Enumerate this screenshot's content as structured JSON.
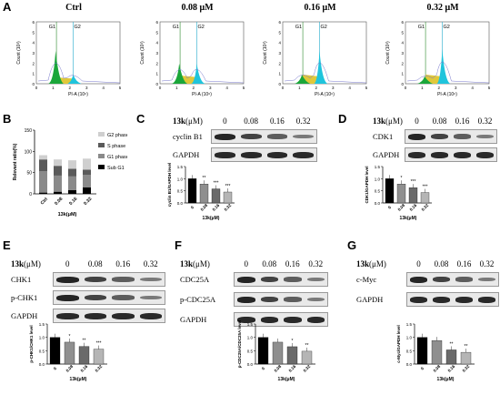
{
  "panels": {
    "A": "A",
    "B": "B",
    "C": "C",
    "D": "D",
    "E": "E",
    "F": "F",
    "G": "G"
  },
  "flow": {
    "titles": [
      "Ctrl",
      "0.08 μM",
      "0.16 μM",
      "0.32 μM"
    ],
    "gate1": "G1",
    "gate2": "G2",
    "ylabel": "Count (10³)",
    "xlabel": "PI-A (10⁶)",
    "yticks": [
      "0",
      "1",
      "2",
      "3",
      "4",
      "5",
      "6"
    ],
    "xticks": [
      "0",
      "1",
      "2",
      "3",
      "4",
      "5"
    ]
  },
  "blot_header": {
    "agent": "13k",
    "unit": "(μM)",
    "doses": [
      "0",
      "0.08",
      "0.16",
      "0.32"
    ]
  },
  "blots": {
    "C": {
      "proteins": [
        "cyclin B1",
        "GAPDH"
      ]
    },
    "D": {
      "proteins": [
        "CDK1",
        "GAPDH"
      ]
    },
    "E": {
      "proteins": [
        "CHK1",
        "p-CHK1",
        "GAPDH"
      ]
    },
    "F": {
      "proteins": [
        "CDC25A",
        "p-CDC25A",
        "GAPDH"
      ]
    },
    "G": {
      "proteins": [
        "c-Myc",
        "GAPDH"
      ]
    }
  },
  "colors": {
    "g1": "#1aa63a",
    "s": "#e0c83a",
    "g2": "#1fc4dc",
    "outline": "#7777cc",
    "bar_dark": "#000000",
    "bar_mid": "#8a8a8a",
    "bar_light": "#bdbdbd"
  },
  "chart_data": [
    {
      "type": "bar",
      "panel": "B",
      "stacked": true,
      "categories": [
        "Ctrl",
        "0.08",
        "0.16",
        "0.32"
      ],
      "series": [
        {
          "name": "Sub G1",
          "values": [
            3,
            5,
            9,
            15
          ]
        },
        {
          "name": "G1 phase",
          "values": [
            50,
            38,
            32,
            30
          ]
        },
        {
          "name": "S phase",
          "values": [
            28,
            23,
            18,
            12
          ]
        },
        {
          "name": "G2 phase",
          "values": [
            10,
            15,
            20,
            26
          ]
        }
      ],
      "xlabel": "13k(μM)",
      "ylabel": "Relevant ratio(%)",
      "ylim": [
        0,
        150
      ],
      "yticks": [
        "0",
        "50",
        "100",
        "150"
      ],
      "legend": "right"
    },
    {
      "type": "bar",
      "panel": "C",
      "categories": [
        "0",
        "0.08",
        "0.16",
        "0.32"
      ],
      "values": [
        1.0,
        0.78,
        0.58,
        0.45
      ],
      "stars": [
        "",
        "**",
        "***",
        "***"
      ],
      "ylabel": "cyclin B1/GAPDH level",
      "xlabel": "13k(μM)",
      "ylim": [
        0,
        1.5
      ],
      "yticks": [
        "0.0",
        "0.5",
        "1.0",
        "1.5"
      ]
    },
    {
      "type": "bar",
      "panel": "D",
      "categories": [
        "0",
        "0.08",
        "0.16",
        "0.32"
      ],
      "values": [
        1.0,
        0.78,
        0.63,
        0.43
      ],
      "stars": [
        "",
        "*",
        "***",
        "***"
      ],
      "ylabel": "CDK1/GAPDH level",
      "xlabel": "13k(μM)",
      "ylim": [
        0,
        1.5
      ],
      "yticks": [
        "0.0",
        "0.5",
        "1.0",
        "1.5"
      ]
    },
    {
      "type": "bar",
      "panel": "E",
      "categories": [
        "0",
        "0.08",
        "0.16",
        "0.32"
      ],
      "values": [
        1.0,
        0.82,
        0.66,
        0.56
      ],
      "stars": [
        "",
        "*",
        "**",
        "***"
      ],
      "ylabel": "p-CHK1/CHK1 level",
      "xlabel": "13k(μM)",
      "ylim": [
        0,
        1.5
      ],
      "yticks": [
        "0.0",
        "0.5",
        "1.0",
        "1.5"
      ]
    },
    {
      "type": "bar",
      "panel": "F",
      "categories": [
        "0",
        "0.08",
        "0.16",
        "0.32"
      ],
      "values": [
        1.0,
        0.82,
        0.65,
        0.48
      ],
      "stars": [
        "",
        "",
        "*",
        "**"
      ],
      "ylabel": "p-CDC25A/CDC25A level",
      "xlabel": "13k(μM)",
      "ylim": [
        0,
        1.5
      ],
      "yticks": [
        "0.0",
        "0.5",
        "1.0",
        "1.5"
      ]
    },
    {
      "type": "bar",
      "panel": "G",
      "categories": [
        "0",
        "0.08",
        "0.16",
        "0.32"
      ],
      "values": [
        1.0,
        0.88,
        0.53,
        0.44
      ],
      "stars": [
        "",
        "",
        "**",
        "**"
      ],
      "ylabel": "c-Myc/GAPDH level",
      "xlabel": "13k(μM)",
      "ylim": [
        0,
        1.5
      ],
      "yticks": [
        "0.0",
        "0.5",
        "1.0",
        "1.5"
      ]
    }
  ]
}
